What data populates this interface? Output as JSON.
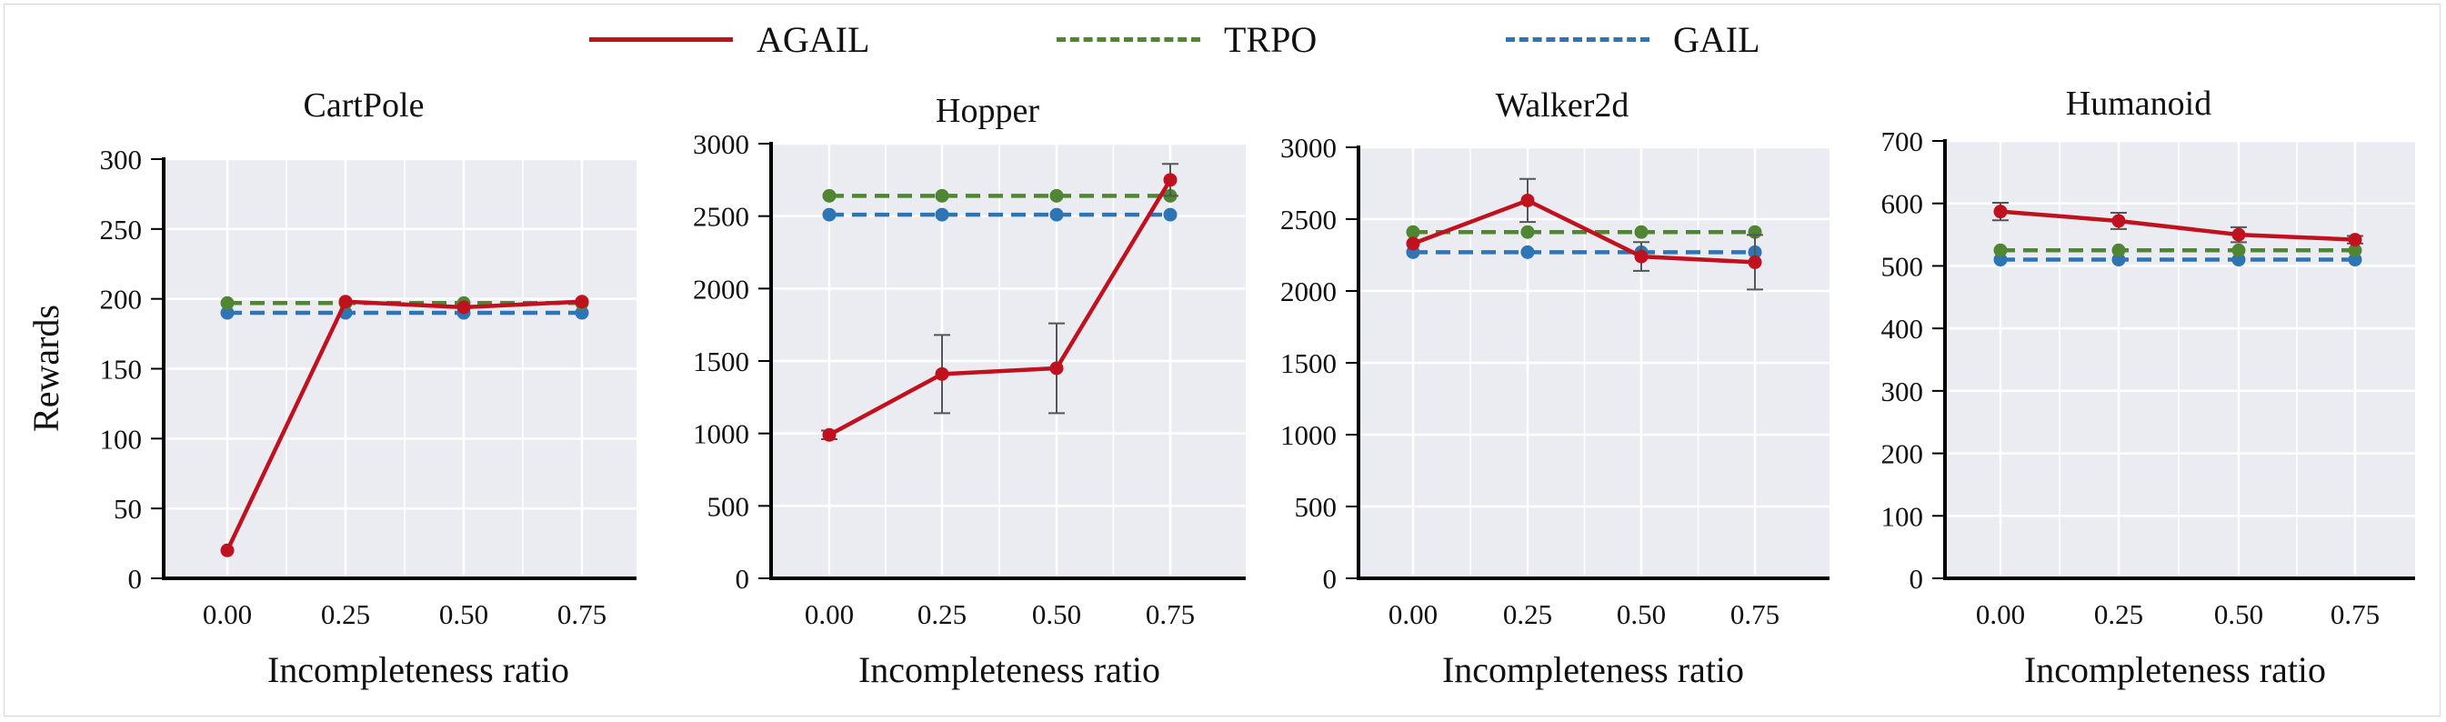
{
  "legend": {
    "agail": {
      "label": "AGAIL",
      "color": "#c0111f",
      "style": "solid"
    },
    "trpo": {
      "label": "TRPO",
      "color": "#4f8533",
      "style": "dashed"
    },
    "gail": {
      "label": "GAIL",
      "color": "#2e75b6",
      "style": "dashed"
    }
  },
  "shared": {
    "ylabel": "Rewards",
    "xlabel": "Incompleteness  ratio",
    "x_ticks": [
      "0.00",
      "0.25",
      "0.50",
      "0.75"
    ]
  },
  "chart_data": [
    {
      "type": "line",
      "title": "CartPole",
      "xlabel": "Incompleteness  ratio",
      "ylabel": "Rewards",
      "x": [
        0.0,
        0.25,
        0.5,
        0.75
      ],
      "x_tick_labels": [
        "0.00",
        "0.25",
        "0.50",
        "0.75"
      ],
      "ylim": [
        0,
        300
      ],
      "y_ticks": [
        0,
        50,
        100,
        150,
        200,
        250,
        300
      ],
      "grid": true,
      "series": [
        {
          "name": "AGAIL",
          "values": [
            20,
            198,
            194,
            198
          ],
          "errors": [
            0,
            0,
            0,
            0
          ]
        },
        {
          "name": "TRPO",
          "values": [
            197,
            197,
            197,
            197
          ]
        },
        {
          "name": "GAIL",
          "values": [
            190,
            190,
            190,
            190
          ]
        }
      ]
    },
    {
      "type": "line",
      "title": "Hopper",
      "xlabel": "Incompleteness  ratio",
      "ylabel": "",
      "x": [
        0.0,
        0.25,
        0.5,
        0.75
      ],
      "x_tick_labels": [
        "0.00",
        "0.25",
        "0.50",
        "0.75"
      ],
      "ylim": [
        0,
        3000
      ],
      "y_ticks": [
        0,
        500,
        1000,
        1500,
        2000,
        2500,
        3000
      ],
      "grid": true,
      "series": [
        {
          "name": "AGAIL",
          "values": [
            990,
            1410,
            1450,
            2750
          ],
          "errors": [
            30,
            270,
            310,
            110
          ]
        },
        {
          "name": "TRPO",
          "values": [
            2640,
            2640,
            2640,
            2640
          ]
        },
        {
          "name": "GAIL",
          "values": [
            2510,
            2510,
            2510,
            2510
          ]
        }
      ]
    },
    {
      "type": "line",
      "title": "Walker2d",
      "xlabel": "Incompleteness  ratio",
      "ylabel": "",
      "x": [
        0.0,
        0.25,
        0.5,
        0.75
      ],
      "x_tick_labels": [
        "0.00",
        "0.25",
        "0.50",
        "0.75"
      ],
      "ylim": [
        0,
        3000
      ],
      "y_ticks": [
        0,
        500,
        1000,
        1500,
        2000,
        2500,
        3000
      ],
      "grid": true,
      "series": [
        {
          "name": "AGAIL",
          "values": [
            2330,
            2630,
            2240,
            2200
          ],
          "errors": [
            0,
            150,
            100,
            190
          ]
        },
        {
          "name": "TRPO",
          "values": [
            2410,
            2410,
            2410,
            2410
          ]
        },
        {
          "name": "GAIL",
          "values": [
            2270,
            2270,
            2270,
            2270
          ]
        }
      ]
    },
    {
      "type": "line",
      "title": "Humanoid",
      "xlabel": "Incompleteness  ratio",
      "ylabel": "",
      "x": [
        0.0,
        0.25,
        0.5,
        0.75
      ],
      "x_tick_labels": [
        "0.00",
        "0.25",
        "0.50",
        "0.75"
      ],
      "ylim": [
        0,
        700
      ],
      "y_ticks": [
        0,
        100,
        200,
        300,
        400,
        500,
        600,
        700
      ],
      "grid": true,
      "series": [
        {
          "name": "AGAIL",
          "values": [
            587,
            572,
            550,
            542
          ],
          "errors": [
            14,
            13,
            12,
            6
          ]
        },
        {
          "name": "TRPO",
          "values": [
            525,
            525,
            525,
            525
          ]
        },
        {
          "name": "GAIL",
          "values": [
            510,
            510,
            510,
            510
          ]
        }
      ]
    }
  ]
}
